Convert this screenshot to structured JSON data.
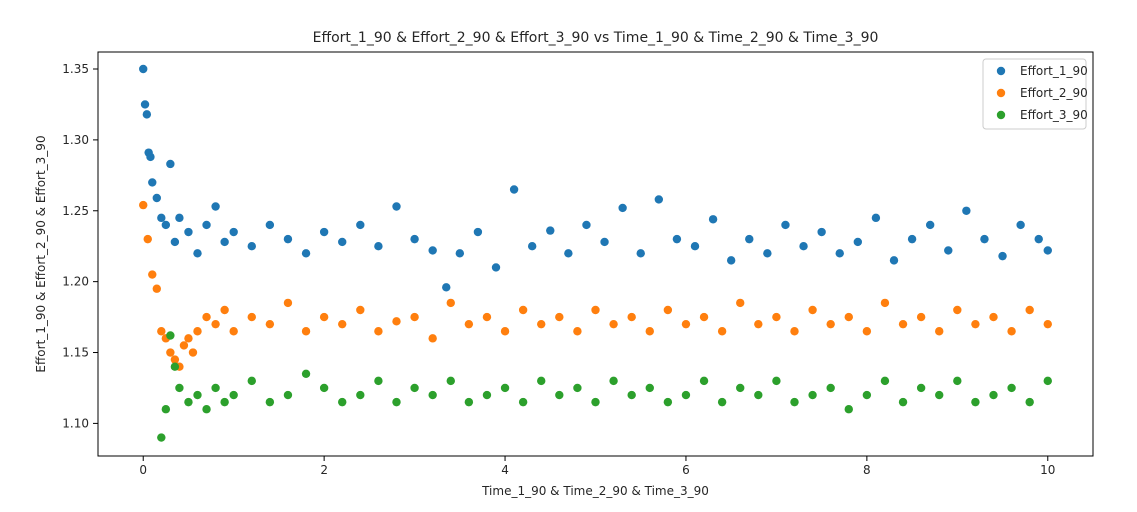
{
  "chart_data": {
    "type": "scatter",
    "title": "Effort_1_90 & Effort_2_90 & Effort_3_90 vs Time_1_90 & Time_2_90 & Time_3_90",
    "xlabel": "Time_1_90 & Time_2_90 & Time_3_90",
    "ylabel": "Effort_1_90 & Effort_2_90 & Effort_3_90",
    "xlim": [
      -0.5,
      10.5
    ],
    "ylim": [
      1.077,
      1.362
    ],
    "xticks": [
      0,
      2,
      4,
      6,
      8,
      10
    ],
    "xtick_labels": [
      "0",
      "2",
      "4",
      "6",
      "8",
      "10"
    ],
    "yticks": [
      1.1,
      1.15,
      1.2,
      1.25,
      1.3,
      1.35
    ],
    "ytick_labels": [
      "1.10",
      "1.15",
      "1.20",
      "1.25",
      "1.30",
      "1.35"
    ],
    "grid": false,
    "legend_position": "top-right",
    "series": [
      {
        "name": "Effort_1_90",
        "color": "#1f77b4",
        "x": [
          0.0,
          0.02,
          0.04,
          0.06,
          0.08,
          0.1,
          0.15,
          0.2,
          0.25,
          0.3,
          0.35,
          0.4,
          0.5,
          0.6,
          0.7,
          0.8,
          0.9,
          1.0,
          1.2,
          1.4,
          1.6,
          1.8,
          2.0,
          2.2,
          2.4,
          2.6,
          2.8,
          3.0,
          3.2,
          3.35,
          3.5,
          3.7,
          3.9,
          4.1,
          4.3,
          4.5,
          4.7,
          4.9,
          5.1,
          5.3,
          5.5,
          5.7,
          5.9,
          6.1,
          6.3,
          6.5,
          6.7,
          6.9,
          7.1,
          7.3,
          7.5,
          7.7,
          7.9,
          8.1,
          8.3,
          8.5,
          8.7,
          8.9,
          9.1,
          9.3,
          9.5,
          9.7,
          9.9,
          10.0
        ],
        "y": [
          1.35,
          1.325,
          1.318,
          1.291,
          1.288,
          1.27,
          1.259,
          1.245,
          1.24,
          1.283,
          1.228,
          1.245,
          1.235,
          1.22,
          1.24,
          1.253,
          1.228,
          1.235,
          1.225,
          1.24,
          1.23,
          1.22,
          1.235,
          1.228,
          1.24,
          1.225,
          1.253,
          1.23,
          1.222,
          1.196,
          1.22,
          1.235,
          1.21,
          1.265,
          1.225,
          1.236,
          1.22,
          1.24,
          1.228,
          1.252,
          1.22,
          1.258,
          1.23,
          1.225,
          1.244,
          1.215,
          1.23,
          1.22,
          1.24,
          1.225,
          1.235,
          1.22,
          1.228,
          1.245,
          1.215,
          1.23,
          1.24,
          1.222,
          1.25,
          1.23,
          1.218,
          1.24,
          1.23,
          1.222
        ]
      },
      {
        "name": "Effort_2_90",
        "color": "#ff7f0e",
        "x": [
          0.0,
          0.05,
          0.1,
          0.15,
          0.2,
          0.25,
          0.3,
          0.35,
          0.4,
          0.45,
          0.5,
          0.55,
          0.6,
          0.7,
          0.8,
          0.9,
          1.0,
          1.2,
          1.4,
          1.6,
          1.8,
          2.0,
          2.2,
          2.4,
          2.6,
          2.8,
          3.0,
          3.2,
          3.4,
          3.6,
          3.8,
          4.0,
          4.2,
          4.4,
          4.6,
          4.8,
          5.0,
          5.2,
          5.4,
          5.6,
          5.8,
          6.0,
          6.2,
          6.4,
          6.6,
          6.8,
          7.0,
          7.2,
          7.4,
          7.6,
          7.8,
          8.0,
          8.2,
          8.4,
          8.6,
          8.8,
          9.0,
          9.2,
          9.4,
          9.6,
          9.8,
          10.0
        ],
        "y": [
          1.254,
          1.23,
          1.205,
          1.195,
          1.165,
          1.16,
          1.15,
          1.145,
          1.14,
          1.155,
          1.16,
          1.15,
          1.165,
          1.175,
          1.17,
          1.18,
          1.165,
          1.175,
          1.17,
          1.185,
          1.165,
          1.175,
          1.17,
          1.18,
          1.165,
          1.172,
          1.175,
          1.16,
          1.185,
          1.17,
          1.175,
          1.165,
          1.18,
          1.17,
          1.175,
          1.165,
          1.18,
          1.17,
          1.175,
          1.165,
          1.18,
          1.17,
          1.175,
          1.165,
          1.185,
          1.17,
          1.175,
          1.165,
          1.18,
          1.17,
          1.175,
          1.165,
          1.185,
          1.17,
          1.175,
          1.165,
          1.18,
          1.17,
          1.175,
          1.165,
          1.18,
          1.17
        ]
      },
      {
        "name": "Effort_3_90",
        "color": "#2ca02c",
        "x": [
          0.2,
          0.25,
          0.3,
          0.35,
          0.4,
          0.5,
          0.6,
          0.7,
          0.8,
          0.9,
          1.0,
          1.2,
          1.4,
          1.6,
          1.8,
          2.0,
          2.2,
          2.4,
          2.6,
          2.8,
          3.0,
          3.2,
          3.4,
          3.6,
          3.8,
          4.0,
          4.2,
          4.4,
          4.6,
          4.8,
          5.0,
          5.2,
          5.4,
          5.6,
          5.8,
          6.0,
          6.2,
          6.4,
          6.6,
          6.8,
          7.0,
          7.2,
          7.4,
          7.6,
          7.8,
          8.0,
          8.2,
          8.4,
          8.6,
          8.8,
          9.0,
          9.2,
          9.4,
          9.6,
          9.8,
          10.0
        ],
        "y": [
          1.09,
          1.11,
          1.162,
          1.14,
          1.125,
          1.115,
          1.12,
          1.11,
          1.125,
          1.115,
          1.12,
          1.13,
          1.115,
          1.12,
          1.135,
          1.125,
          1.115,
          1.12,
          1.13,
          1.115,
          1.125,
          1.12,
          1.13,
          1.115,
          1.12,
          1.125,
          1.115,
          1.13,
          1.12,
          1.125,
          1.115,
          1.13,
          1.12,
          1.125,
          1.115,
          1.12,
          1.13,
          1.115,
          1.125,
          1.12,
          1.13,
          1.115,
          1.12,
          1.125,
          1.11,
          1.12,
          1.13,
          1.115,
          1.125,
          1.12,
          1.13,
          1.115,
          1.12,
          1.125,
          1.115,
          1.13
        ]
      }
    ]
  }
}
